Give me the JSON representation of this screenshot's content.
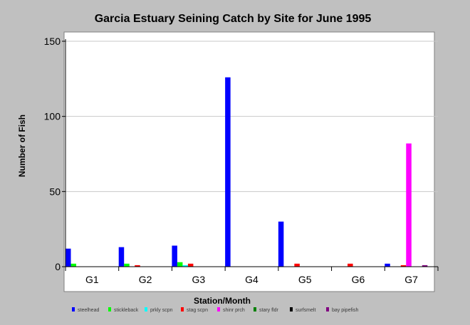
{
  "chart_data": {
    "type": "bar",
    "title": "Garcia Estuary Seining Catch by Site for June 1995",
    "xlabel": "Station/Month",
    "ylabel": "Number of Fish",
    "ylim": [
      0,
      150
    ],
    "yticks": [
      0,
      50,
      100,
      150
    ],
    "grid": true,
    "legend_position": "bottom",
    "categories": [
      "G1",
      "G2",
      "G3",
      "G4",
      "G5",
      "G6",
      "G7"
    ],
    "series": [
      {
        "name": "steelhead",
        "color": "#0000ff",
        "values": [
          12,
          13,
          14,
          126,
          30,
          0,
          2
        ]
      },
      {
        "name": "stickleback",
        "color": "#00ff00",
        "values": [
          2,
          2,
          3,
          0,
          0,
          0,
          0
        ]
      },
      {
        "name": "prkly scpn",
        "color": "#00ffff",
        "values": [
          0,
          0,
          1,
          0,
          0,
          0,
          0
        ]
      },
      {
        "name": "stag scpn",
        "color": "#ff0000",
        "values": [
          0,
          1,
          2,
          0,
          2,
          2,
          1
        ]
      },
      {
        "name": "shinr prch",
        "color": "#ff00ff",
        "values": [
          0,
          0,
          0,
          0,
          0,
          0,
          82
        ]
      },
      {
        "name": "stary fldr",
        "color": "#008000",
        "values": [
          0,
          0,
          0,
          0,
          0,
          0,
          0
        ]
      },
      {
        "name": "surfsmelt",
        "color": "#000000",
        "values": [
          0,
          0,
          0,
          0,
          0,
          0,
          0
        ]
      },
      {
        "name": "bay pipefish",
        "color": "#800080",
        "values": [
          0,
          0,
          0,
          0,
          0,
          0,
          1
        ]
      }
    ]
  }
}
